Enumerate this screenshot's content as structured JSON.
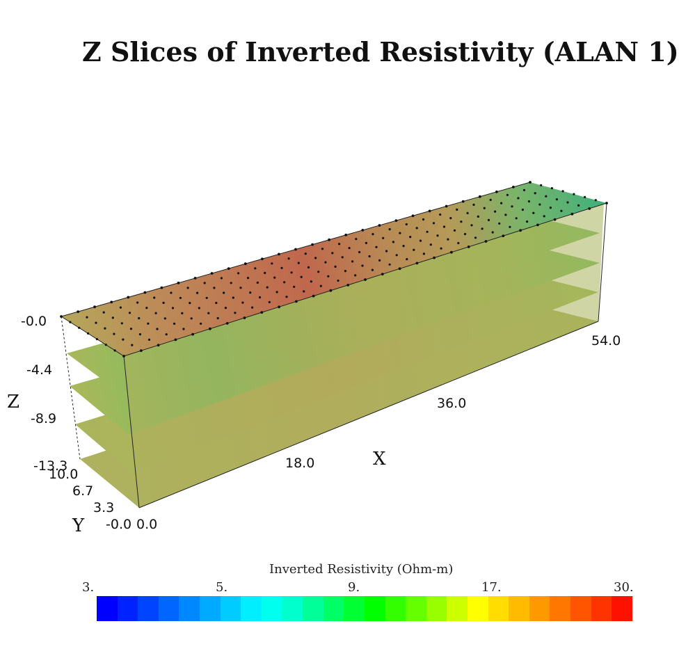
{
  "chart_data": {
    "type": "heatmap",
    "subtype": "3d-z-slices",
    "title": "Z Slices of Inverted Resistivity (ALAN 1)",
    "axes": {
      "x": {
        "label": "X",
        "ticks": [
          "18.0",
          "36.0",
          "54.0"
        ],
        "range": [
          0,
          54
        ]
      },
      "y": {
        "label": "Y",
        "ticks": [
          "-0.0",
          "3.3",
          "6.7",
          "10.0"
        ],
        "range": [
          0,
          10
        ]
      },
      "z": {
        "label": "Z",
        "ticks": [
          "-0.0",
          "-4.4",
          "-8.9",
          "-13.3"
        ],
        "range": [
          -13.3,
          0
        ]
      },
      "origin_label": "0.0"
    },
    "slices": [
      {
        "z": 0.0,
        "dominant_colors": [
          "#b89a5a",
          "#c06a4e",
          "#44b07a"
        ]
      },
      {
        "z": -4.4,
        "dominant_colors": [
          "#9cba52",
          "#6cc060"
        ]
      },
      {
        "z": -8.9,
        "dominant_colors": [
          "#a8b458"
        ]
      },
      {
        "z": -13.3,
        "dominant_colors": [
          "#b0b060"
        ]
      }
    ],
    "colorbar": {
      "title": "Inverted Resistivity (Ohm-m)",
      "tick_labels": [
        "3.",
        "5.",
        "9.",
        "17.",
        "30."
      ],
      "scale": "log",
      "range": [
        3,
        30
      ],
      "colors": [
        "#0000ff",
        "#0022ff",
        "#0044ff",
        "#0066ff",
        "#0088ff",
        "#00aaff",
        "#00ccff",
        "#00eeff",
        "#00ffee",
        "#00ffcc",
        "#00ff99",
        "#00ff66",
        "#00ff33",
        "#00ff00",
        "#33ff00",
        "#66ff00",
        "#99ff00",
        "#ccff00",
        "#ffff00",
        "#ffdd00",
        "#ffbb00",
        "#ff9900",
        "#ff7700",
        "#ff5500",
        "#ff3300",
        "#ff1100"
      ]
    }
  }
}
